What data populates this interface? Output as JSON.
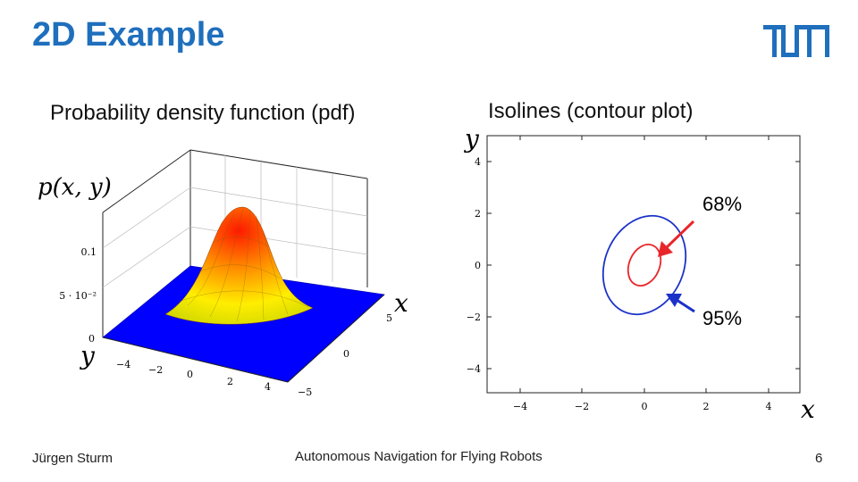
{
  "header": {
    "title": "2D Example"
  },
  "logo": {
    "text": "TUM",
    "color": "#1f6fbd"
  },
  "left_panel": {
    "subtitle": "Probability density function (pdf)",
    "zlabel": "p(x, y)",
    "xlabel": "x",
    "ylabel": "y",
    "z_ticks": [
      "0",
      "5 · 10⁻²",
      "0.1"
    ],
    "y_ticks": [
      "−4",
      "−2",
      "0",
      "2",
      "4"
    ],
    "x_ticks": [
      "5",
      "0",
      "−5"
    ],
    "colors": {
      "low": "#0000ff",
      "mid": "#ffff00",
      "high": "#ff0000"
    }
  },
  "right_panel": {
    "subtitle": "Isolines (contour plot)",
    "xlabel": "x",
    "ylabel": "y",
    "x_ticks": [
      "−4",
      "−2",
      "0",
      "2",
      "4"
    ],
    "y_ticks": [
      "4",
      "2",
      "0",
      "−2",
      "−4"
    ],
    "labels": {
      "inner": "68%",
      "outer": "95%"
    },
    "colors": {
      "inner": "#e8262a",
      "outer": "#1a32c8"
    }
  },
  "chart_data": {
    "type": "contour",
    "xlabel": "x",
    "ylabel": "y",
    "xlim": [
      -5.5,
      5.5
    ],
    "ylim": [
      -5.2,
      5.2
    ],
    "center": [
      0,
      0
    ],
    "contours": [
      {
        "name": "68%",
        "level": 0.68,
        "color": "#e8262a"
      },
      {
        "name": "95%",
        "level": 0.95,
        "color": "#1a32c8"
      }
    ]
  },
  "footer": {
    "author": "Jürgen Sturm",
    "course": "Autonomous Navigation for Flying Robots",
    "page": "6"
  }
}
